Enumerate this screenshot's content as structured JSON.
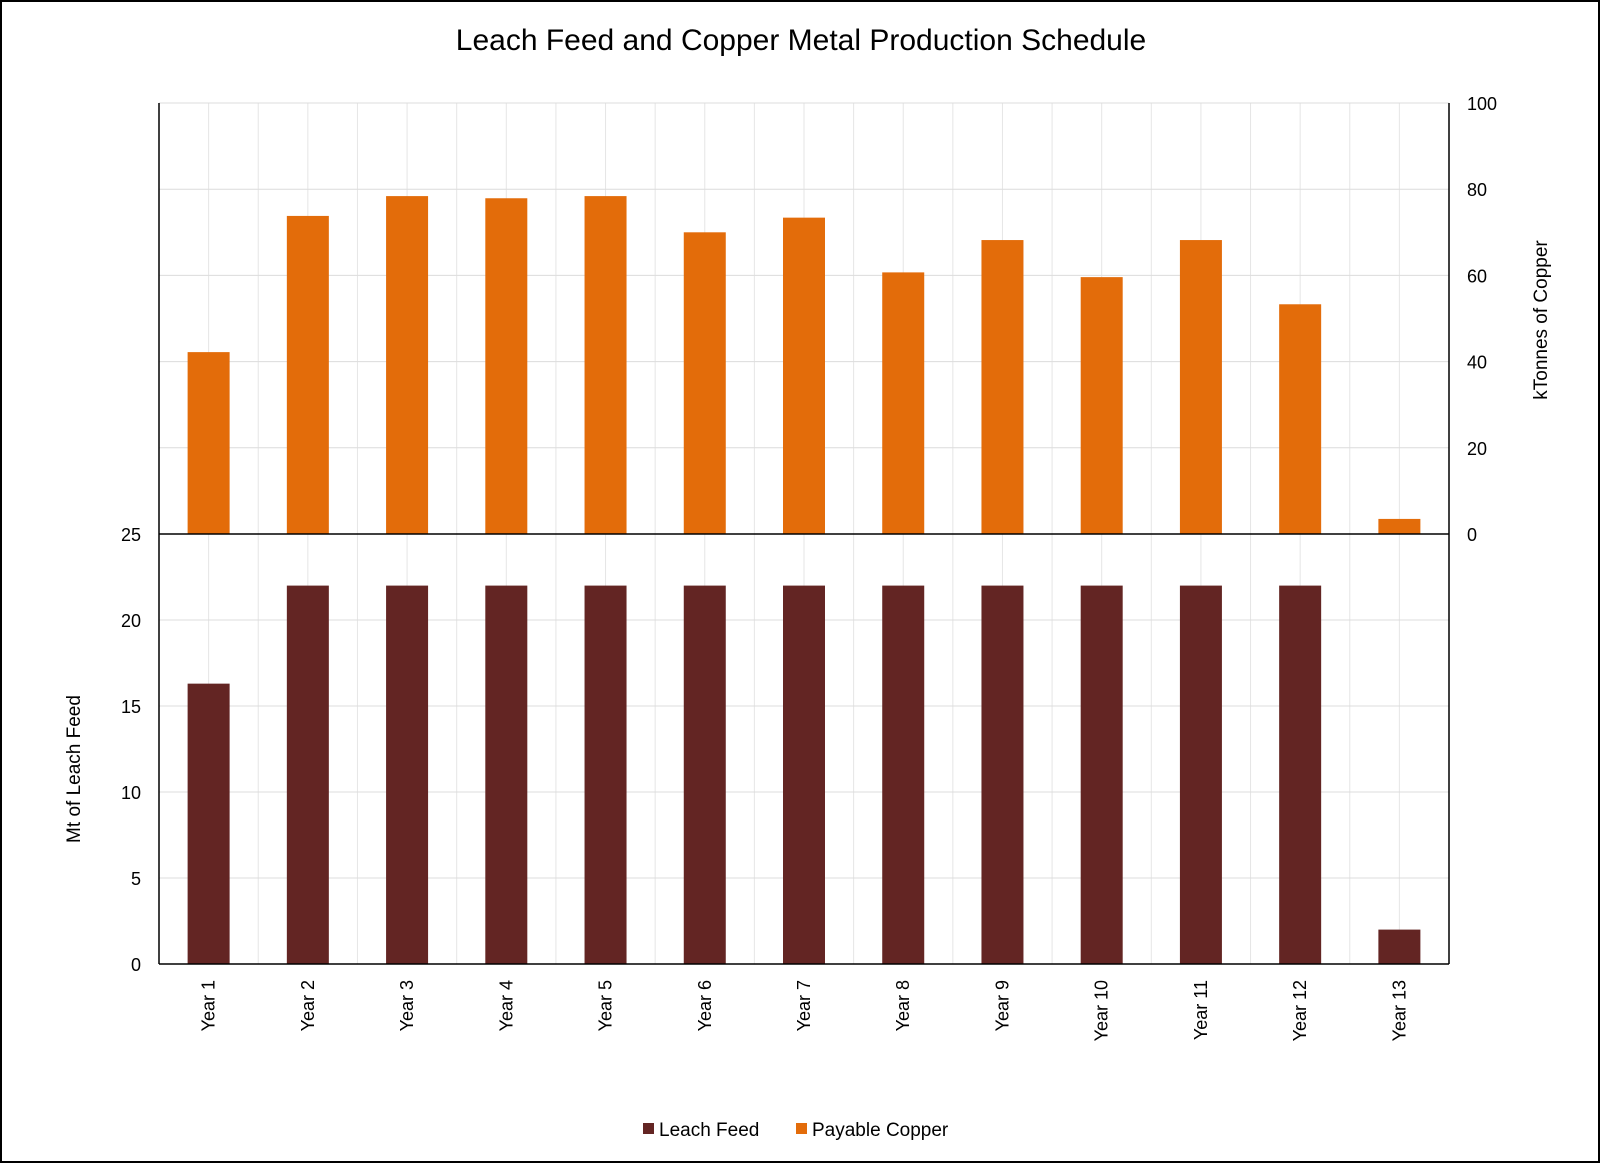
{
  "chart_data": {
    "type": "bar",
    "title": "Leach Feed and Copper Metal Production Schedule",
    "categories": [
      "Year 1",
      "Year 2",
      "Year 3",
      "Year 4",
      "Year 5",
      "Year 6",
      "Year 7",
      "Year 8",
      "Year 9",
      "Year 10",
      "Year 11",
      "Year 12",
      "Year 13"
    ],
    "series": [
      {
        "name": "Leach Feed",
        "color": "#632523",
        "axis": "left",
        "values": [
          16.3,
          22,
          22,
          22,
          22,
          22,
          22,
          22,
          22,
          22,
          22,
          22,
          2
        ]
      },
      {
        "name": "Payable Copper",
        "color": "#E36C0A",
        "axis": "right",
        "values": [
          42.2,
          73.8,
          78.4,
          77.9,
          78.4,
          70.0,
          73.4,
          60.7,
          68.2,
          59.6,
          68.2,
          53.3,
          3.5
        ]
      }
    ],
    "y_left": {
      "label": "Mt of Leach Feed",
      "ticks": [
        "0",
        "5",
        "10",
        "15",
        "20",
        "25"
      ],
      "range": [
        0,
        25
      ]
    },
    "y_right": {
      "label": "kTonnes of Copper",
      "ticks": [
        "0",
        "20",
        "40",
        "60",
        "80",
        "100"
      ],
      "range": [
        0,
        100
      ]
    },
    "grid": true,
    "legend_position": "bottom"
  }
}
